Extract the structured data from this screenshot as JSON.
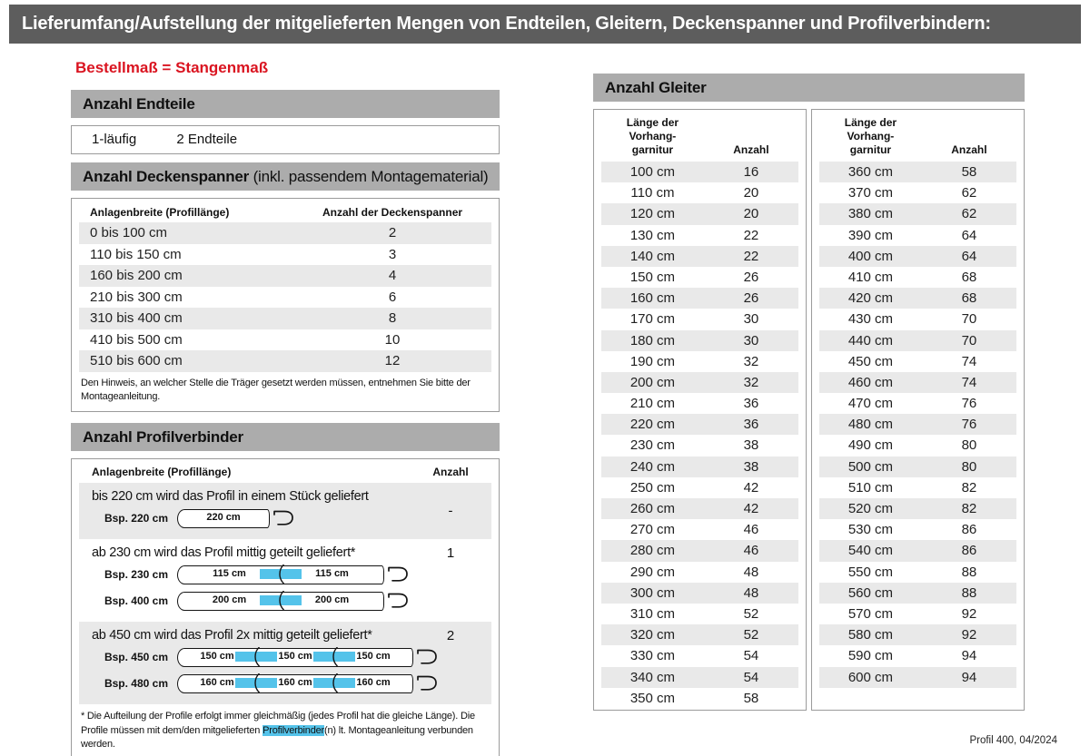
{
  "page": {
    "title": "Lieferumfang/Aufstellung der mitgelieferten Mengen von Endteilen, Gleitern, Deckenspanner und Profilverbindern:",
    "subtitle": "Bestellmaß = Stangenmaß",
    "footer": "Profil 400, 04/2024"
  },
  "colors": {
    "title_bar": "#5d5d5d",
    "section_bar": "#acacac",
    "row_shade": "#e9e9e9",
    "accent_red": "#da1420",
    "connector_blue": "#54c3ea"
  },
  "endteile": {
    "heading": "Anzahl Endteile",
    "row": {
      "label": "1-läufig",
      "value": "2 Endteile"
    }
  },
  "deckenspanner": {
    "heading_bold": "Anzahl Deckenspanner",
    "heading_normal": " (inkl. passendem Montagematerial)",
    "col1": "Anlagenbreite (Profillänge)",
    "col2": "Anzahl der Deckenspanner",
    "rows": [
      [
        "0 bis 100 cm",
        "2"
      ],
      [
        "110 bis 150 cm",
        "3"
      ],
      [
        "160 bis 200 cm",
        "4"
      ],
      [
        "210 bis 300 cm",
        "6"
      ],
      [
        "310 bis 400 cm",
        "8"
      ],
      [
        "410 bis 500 cm",
        "10"
      ],
      [
        "510 bis 600 cm",
        "12"
      ]
    ],
    "note": "Den Hinweis, an welcher Stelle die Träger gesetzt werden müssen, entnehmen Sie bitte der Montageanleitung."
  },
  "profilverbinder": {
    "heading": "Anzahl Profilverbinder",
    "col1": "Anlagenbreite (Profillänge)",
    "col2": "Anzahl",
    "groups": [
      {
        "text": "bis 220 cm wird das Profil in einem Stück geliefert",
        "anzahl": "-",
        "examples": [
          {
            "label": "Bsp. 220 cm",
            "segments": [
              "220 cm"
            ]
          }
        ]
      },
      {
        "text": "ab 230 cm wird das Profil mittig geteilt geliefert*",
        "anzahl": "1",
        "examples": [
          {
            "label": "Bsp. 230 cm",
            "segments": [
              "115 cm",
              "115 cm"
            ]
          },
          {
            "label": "Bsp. 400 cm",
            "segments": [
              "200 cm",
              "200 cm"
            ]
          }
        ]
      },
      {
        "text": "ab 450 cm wird das Profil 2x mittig geteilt geliefert*",
        "anzahl": "2",
        "examples": [
          {
            "label": "Bsp. 450 cm",
            "segments": [
              "150 cm",
              "150 cm",
              "150 cm"
            ]
          },
          {
            "label": "Bsp. 480 cm",
            "segments": [
              "160 cm",
              "160 cm",
              "160 cm"
            ]
          }
        ]
      }
    ],
    "footnote": {
      "before": "* Die Aufteilung der Profile erfolgt immer gleichmäßig (jedes Profil hat die gleiche Länge). Die Profile müssen mit dem/den mitgelieferten ",
      "highlight": "Profilverbinder",
      "after": "(n) lt. Montageanleitung verbunden werden."
    }
  },
  "gleiter": {
    "heading": "Anzahl Gleiter",
    "col1_lines": [
      "Länge der",
      "Vorhang-",
      "garnitur"
    ],
    "col2": "Anzahl",
    "left_rows": [
      [
        "100 cm",
        "16"
      ],
      [
        "110 cm",
        "20"
      ],
      [
        "120 cm",
        "20"
      ],
      [
        "130 cm",
        "22"
      ],
      [
        "140 cm",
        "22"
      ],
      [
        "150 cm",
        "26"
      ],
      [
        "160 cm",
        "26"
      ],
      [
        "170 cm",
        "30"
      ],
      [
        "180 cm",
        "30"
      ],
      [
        "190 cm",
        "32"
      ],
      [
        "200 cm",
        "32"
      ],
      [
        "210 cm",
        "36"
      ],
      [
        "220 cm",
        "36"
      ],
      [
        "230 cm",
        "38"
      ],
      [
        "240 cm",
        "38"
      ],
      [
        "250 cm",
        "42"
      ],
      [
        "260 cm",
        "42"
      ],
      [
        "270 cm",
        "46"
      ],
      [
        "280 cm",
        "46"
      ],
      [
        "290 cm",
        "48"
      ],
      [
        "300 cm",
        "48"
      ],
      [
        "310 cm",
        "52"
      ],
      [
        "320 cm",
        "52"
      ],
      [
        "330 cm",
        "54"
      ],
      [
        "340 cm",
        "54"
      ],
      [
        "350 cm",
        "58"
      ]
    ],
    "right_rows": [
      [
        "360 cm",
        "58"
      ],
      [
        "370 cm",
        "62"
      ],
      [
        "380 cm",
        "62"
      ],
      [
        "390 cm",
        "64"
      ],
      [
        "400 cm",
        "64"
      ],
      [
        "410 cm",
        "68"
      ],
      [
        "420 cm",
        "68"
      ],
      [
        "430 cm",
        "70"
      ],
      [
        "440 cm",
        "70"
      ],
      [
        "450 cm",
        "74"
      ],
      [
        "460 cm",
        "74"
      ],
      [
        "470 cm",
        "76"
      ],
      [
        "480 cm",
        "76"
      ],
      [
        "490 cm",
        "80"
      ],
      [
        "500 cm",
        "80"
      ],
      [
        "510 cm",
        "82"
      ],
      [
        "520 cm",
        "82"
      ],
      [
        "530 cm",
        "86"
      ],
      [
        "540 cm",
        "86"
      ],
      [
        "550 cm",
        "88"
      ],
      [
        "560 cm",
        "88"
      ],
      [
        "570 cm",
        "92"
      ],
      [
        "580 cm",
        "92"
      ],
      [
        "590 cm",
        "94"
      ],
      [
        "600 cm",
        "94"
      ]
    ]
  }
}
